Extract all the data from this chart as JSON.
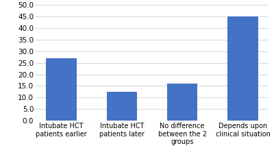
{
  "categories": [
    "Intubate HCT\npatients earlier",
    "Intubate HCT\npatients later",
    "No difference\nbetween the 2\ngroups",
    "Depends upon\nclinical situation"
  ],
  "values": [
    27,
    12.5,
    16,
    45
  ],
  "bar_color": "#4472C4",
  "ylim": [
    0,
    50
  ],
  "yticks": [
    0.0,
    5.0,
    10.0,
    15.0,
    20.0,
    25.0,
    30.0,
    35.0,
    40.0,
    45.0,
    50.0
  ],
  "background_color": "#ffffff",
  "grid_color": "#d9d9d9",
  "tick_fontsize": 7.5,
  "label_fontsize": 7.0
}
